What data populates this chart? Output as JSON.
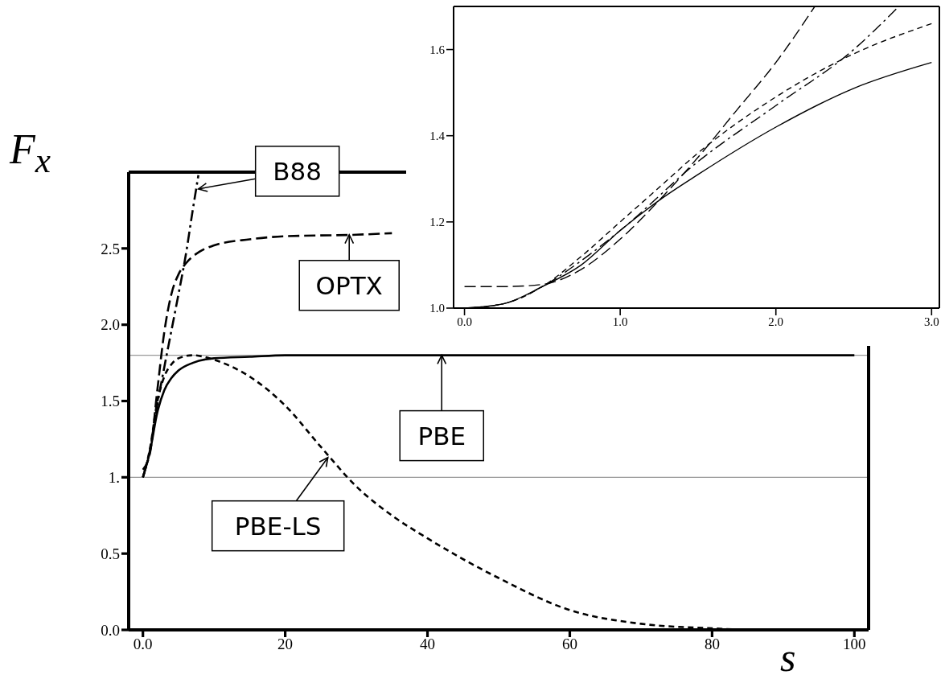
{
  "chart_data": [
    {
      "type": "line",
      "xlabel": "s",
      "ylabel": "F$_{x}$",
      "xlim": [
        -2,
        102
      ],
      "ylim": [
        0,
        3
      ],
      "xticks": [
        {
          "value": 0,
          "label": "0.0"
        },
        20,
        40,
        60,
        80,
        100
      ],
      "yticks": [
        {
          "value": 0,
          "label": "0.0"
        },
        {
          "value": 0.5,
          "label": "0.5"
        },
        {
          "value": 1,
          "label": "1."
        },
        {
          "value": 1.5,
          "label": "1.5"
        },
        {
          "value": 2,
          "label": "2.0"
        },
        {
          "value": 2.5,
          "label": "2.5"
        }
      ],
      "series": [
        {
          "color": "#000000",
          "line_style": "solid",
          "x": [
            0,
            1,
            2,
            3,
            4,
            5,
            7,
            10,
            15,
            20,
            40,
            60,
            80,
            100
          ],
          "values": [
            1,
            1.17,
            1.42,
            1.57,
            1.65,
            1.7,
            1.75,
            1.78,
            1.79,
            1.8,
            1.8,
            1.8,
            1.8,
            1.8
          ]
        },
        {
          "color": "#000000",
          "line_style": "dashed",
          "x": [
            0,
            1,
            2,
            3,
            4,
            5,
            7,
            10,
            15,
            20,
            25,
            30,
            35,
            40,
            50,
            60,
            70,
            80,
            85
          ],
          "values": [
            1,
            1.19,
            1.49,
            1.66,
            1.74,
            1.78,
            1.8,
            1.77,
            1.66,
            1.47,
            1.2,
            0.94,
            0.75,
            0.6,
            0.34,
            0.13,
            0.04,
            0.01,
            0
          ]
        },
        {
          "color": "#000000",
          "line_style": "longdash",
          "x": [
            0,
            1,
            2,
            3,
            4,
            5,
            6,
            8,
            10,
            15,
            20,
            30,
            35
          ],
          "values": [
            1.05,
            1.16,
            1.56,
            1.95,
            2.2,
            2.33,
            2.4,
            2.48,
            2.52,
            2.56,
            2.58,
            2.59,
            2.6
          ]
        },
        {
          "color": "#000000",
          "line_style": "dashdot",
          "x": [
            0,
            1,
            2,
            3,
            4,
            5,
            6,
            7,
            7.8
          ],
          "values": [
            1,
            1.18,
            1.47,
            1.72,
            1.96,
            2.2,
            2.45,
            2.75,
            2.98
          ]
        }
      ],
      "ref_lines": [
        {
          "axis": "y",
          "value": 1,
          "color": "#999999"
        },
        {
          "axis": "y",
          "value": 1.8,
          "color": "#999999"
        }
      ],
      "annotations": [
        {
          "text": "B88",
          "x": 7.8,
          "y": 2.89
        },
        {
          "text": "OPTX",
          "x": 29,
          "y": 2.59
        },
        {
          "text": "PBE",
          "x": 42,
          "y": 1.8
        },
        {
          "text": "PBE-LS",
          "x": 26,
          "y": 1.13
        }
      ]
    },
    {
      "type": "line",
      "xlim": [
        -0.07,
        3.05
      ],
      "ylim": [
        1,
        1.7
      ],
      "xticks": [
        {
          "value": 0,
          "label": "0.0"
        },
        {
          "value": 1,
          "label": "1.0"
        },
        {
          "value": 2,
          "label": "2.0"
        },
        {
          "value": 3,
          "label": "3.0"
        }
      ],
      "yticks": [
        {
          "value": 1,
          "label": "1.0"
        },
        1.2,
        1.4,
        1.6
      ],
      "series": [
        {
          "color": "#000000",
          "line_style": "solid",
          "x": [
            0,
            0.25,
            0.5,
            0.75,
            1,
            1.25,
            1.5,
            2,
            2.5,
            3
          ],
          "values": [
            1,
            1.01,
            1.05,
            1.1,
            1.18,
            1.25,
            1.31,
            1.42,
            1.51,
            1.57
          ]
        },
        {
          "color": "#000000",
          "line_style": "dashed",
          "x": [
            0,
            0.25,
            0.5,
            0.75,
            1,
            1.25,
            1.5,
            2,
            2.5,
            3
          ],
          "values": [
            1,
            1.01,
            1.05,
            1.12,
            1.2,
            1.28,
            1.36,
            1.49,
            1.59,
            1.66
          ]
        },
        {
          "color": "#000000",
          "line_style": "longdash",
          "x": [
            0,
            0.25,
            0.5,
            0.75,
            1,
            1.25,
            1.5,
            1.75,
            2,
            2.25
          ],
          "values": [
            1.05,
            1.05,
            1.055,
            1.09,
            1.16,
            1.25,
            1.35,
            1.46,
            1.57,
            1.7
          ]
        },
        {
          "color": "#000000",
          "line_style": "dashdot",
          "x": [
            0,
            0.25,
            0.5,
            0.75,
            1,
            1.5,
            2,
            2.5,
            2.79
          ],
          "values": [
            1,
            1.01,
            1.05,
            1.11,
            1.18,
            1.34,
            1.47,
            1.6,
            1.7
          ]
        }
      ]
    }
  ]
}
